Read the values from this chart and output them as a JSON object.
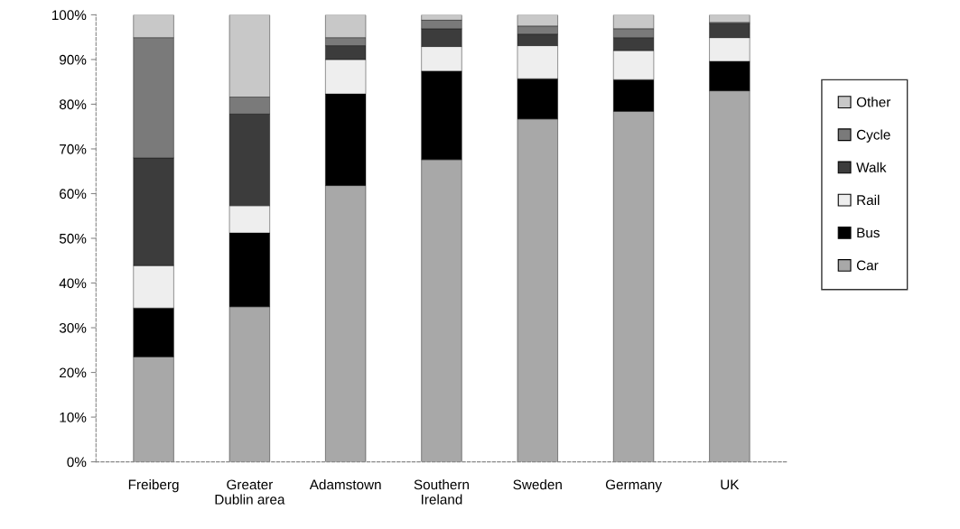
{
  "chart_data": {
    "type": "bar",
    "stacked": true,
    "categories": [
      "Freiberg",
      "Greater\nDublin area",
      "Adamstown",
      "Southern\nIreland",
      "Sweden",
      "Germany",
      "UK"
    ],
    "series": [
      {
        "name": "Car",
        "color": "#a8a8a8",
        "values": [
          23.5,
          34.7,
          61.8,
          67.6,
          76.7,
          78.4,
          83.0
        ]
      },
      {
        "name": "Bus",
        "color": "#000000",
        "values": [
          10.9,
          16.5,
          20.5,
          19.8,
          9.0,
          7.1,
          6.6
        ]
      },
      {
        "name": "Rail",
        "color": "#eeeeee",
        "values": [
          9.5,
          6.1,
          7.7,
          5.5,
          7.4,
          6.5,
          5.3
        ]
      },
      {
        "name": "Walk",
        "color": "#3c3c3c",
        "values": [
          24.1,
          20.5,
          3.1,
          4.0,
          2.6,
          2.9,
          3.1
        ]
      },
      {
        "name": "Cycle",
        "color": "#7a7a7a",
        "values": [
          26.9,
          3.8,
          1.8,
          1.9,
          1.8,
          2.0,
          0.3
        ]
      },
      {
        "name": "Other",
        "color": "#c8c8c8",
        "values": [
          5.1,
          18.4,
          5.1,
          1.2,
          2.5,
          3.1,
          1.7
        ]
      }
    ],
    "ylim": [
      0,
      100
    ],
    "yticks": [
      {
        "value": 0,
        "label": "0%"
      },
      {
        "value": 10,
        "label": "10%"
      },
      {
        "value": 20,
        "label": "20%"
      },
      {
        "value": 30,
        "label": "30%"
      },
      {
        "value": 40,
        "label": "40%"
      },
      {
        "value": 50,
        "label": "50%"
      },
      {
        "value": 60,
        "label": "60%"
      },
      {
        "value": 70,
        "label": "70%"
      },
      {
        "value": 80,
        "label": "80%"
      },
      {
        "value": 90,
        "label": "90%"
      },
      {
        "value": 100,
        "label": "100%"
      }
    ],
    "grid": false,
    "legend": "right"
  }
}
